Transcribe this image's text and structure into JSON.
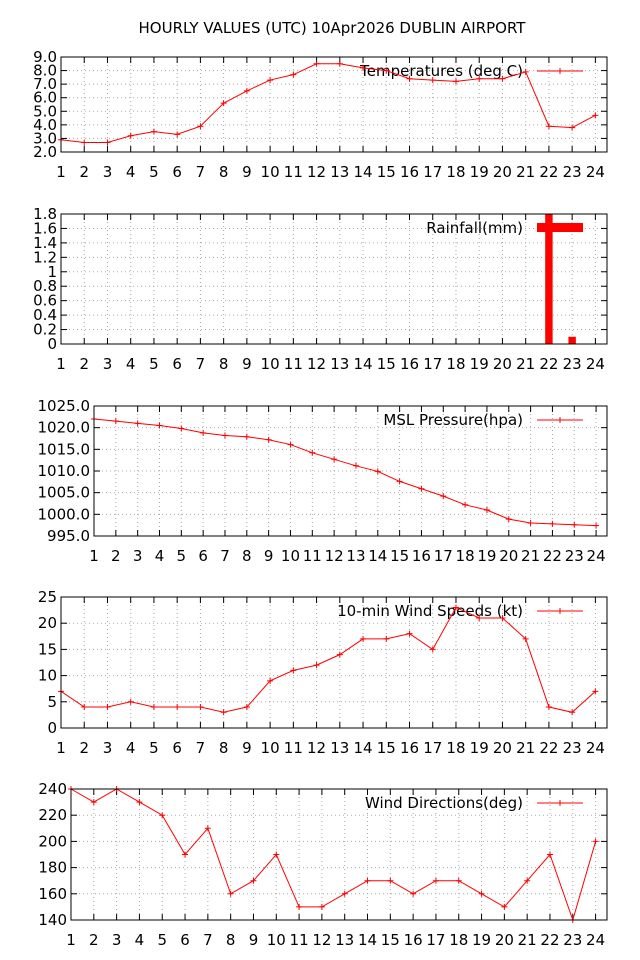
{
  "title": "HOURLY VALUES (UTC) 10Apr2026  DUBLIN AIRPORT",
  "series_color": "#ff0000",
  "chart_data": [
    {
      "type": "line",
      "title": "Temperatures (deg C)",
      "legend": "Temperatures (deg C)",
      "legend_position": "top-right",
      "x": [
        1,
        2,
        3,
        4,
        5,
        6,
        7,
        8,
        9,
        10,
        11,
        12,
        13,
        14,
        15,
        16,
        17,
        18,
        19,
        20,
        21,
        22,
        23,
        24
      ],
      "values": [
        2.9,
        2.7,
        2.7,
        3.2,
        3.5,
        3.3,
        3.9,
        5.6,
        6.5,
        7.3,
        7.7,
        8.5,
        8.5,
        8.2,
        8.0,
        7.4,
        7.3,
        7.2,
        7.4,
        7.4,
        7.9,
        3.9,
        3.8,
        4.7
      ],
      "xlim": [
        1,
        24.5
      ],
      "ylim": [
        2,
        9
      ],
      "yticks": [
        "2.0",
        "3.0",
        "4.0",
        "5.0",
        "6.0",
        "7.0",
        "8.0",
        "9.0"
      ],
      "grid": true
    },
    {
      "type": "bar",
      "title": "Rainfall(mm)",
      "legend": "Rainfall(mm)",
      "legend_position": "top-right",
      "x": [
        1,
        2,
        3,
        4,
        5,
        6,
        7,
        8,
        9,
        10,
        11,
        12,
        13,
        14,
        15,
        16,
        17,
        18,
        19,
        20,
        21,
        22,
        23,
        24
      ],
      "values": [
        0,
        0,
        0,
        0,
        0,
        0,
        0,
        0,
        0,
        0,
        0,
        0,
        0,
        0,
        0,
        0,
        0,
        0,
        0,
        0,
        0,
        1.8,
        0.1,
        0
      ],
      "xlim": [
        1,
        24.5
      ],
      "ylim": [
        0,
        1.8
      ],
      "yticks": [
        "0",
        "0.2",
        "0.4",
        "0.6",
        "0.8",
        "1",
        "1.2",
        "1.4",
        "1.6",
        "1.8"
      ],
      "grid": true
    },
    {
      "type": "line",
      "title": "MSL Pressure(hpa)",
      "legend": "MSL Pressure(hpa)",
      "legend_position": "top-right",
      "x": [
        1,
        2,
        3,
        4,
        5,
        6,
        7,
        8,
        9,
        10,
        11,
        12,
        13,
        14,
        15,
        16,
        17,
        18,
        19,
        20,
        21,
        22,
        23,
        24
      ],
      "values": [
        1022.0,
        1021.5,
        1021.0,
        1020.5,
        1019.8,
        1018.8,
        1018.2,
        1017.9,
        1017.2,
        1016.1,
        1014.2,
        1012.7,
        1011.2,
        1009.9,
        1007.6,
        1005.9,
        1004.2,
        1002.2,
        1001.0,
        998.9,
        998.0,
        997.8,
        997.6,
        997.4
      ],
      "xlim": [
        1,
        24.5
      ],
      "ylim": [
        995,
        1025
      ],
      "yticks": [
        "995.0",
        "1000.0",
        "1005.0",
        "1010.0",
        "1015.0",
        "1020.0",
        "1025.0"
      ],
      "grid": true
    },
    {
      "type": "line",
      "title": "10-min Wind Speeds (kt)",
      "legend": "10-min Wind Speeds (kt)",
      "legend_position": "top-right",
      "x": [
        1,
        2,
        3,
        4,
        5,
        6,
        7,
        8,
        9,
        10,
        11,
        12,
        13,
        14,
        15,
        16,
        17,
        18,
        19,
        20,
        21,
        22,
        23,
        24
      ],
      "values": [
        7,
        4,
        4,
        5,
        4,
        4,
        4,
        3,
        4,
        9,
        11,
        12,
        14,
        17,
        17,
        18,
        15,
        23,
        21,
        21,
        17,
        4,
        3,
        7
      ],
      "xlim": [
        1,
        24.5
      ],
      "ylim": [
        0,
        25
      ],
      "yticks": [
        "0",
        "5",
        "10",
        "15",
        "20",
        "25"
      ],
      "grid": true
    },
    {
      "type": "line",
      "title": "Wind Directions(deg)",
      "legend": "Wind Directions(deg)",
      "legend_position": "top-right",
      "x": [
        1,
        2,
        3,
        4,
        5,
        6,
        7,
        8,
        9,
        10,
        11,
        12,
        13,
        14,
        15,
        16,
        17,
        18,
        19,
        20,
        21,
        22,
        23,
        24
      ],
      "values": [
        240,
        230,
        240,
        230,
        220,
        190,
        210,
        160,
        170,
        190,
        150,
        150,
        160,
        170,
        170,
        160,
        170,
        170,
        160,
        150,
        170,
        190,
        140,
        200
      ],
      "xlim": [
        1,
        24.5
      ],
      "ylim": [
        140,
        240
      ],
      "yticks": [
        "140",
        "160",
        "180",
        "200",
        "220",
        "240"
      ],
      "grid": true
    }
  ]
}
